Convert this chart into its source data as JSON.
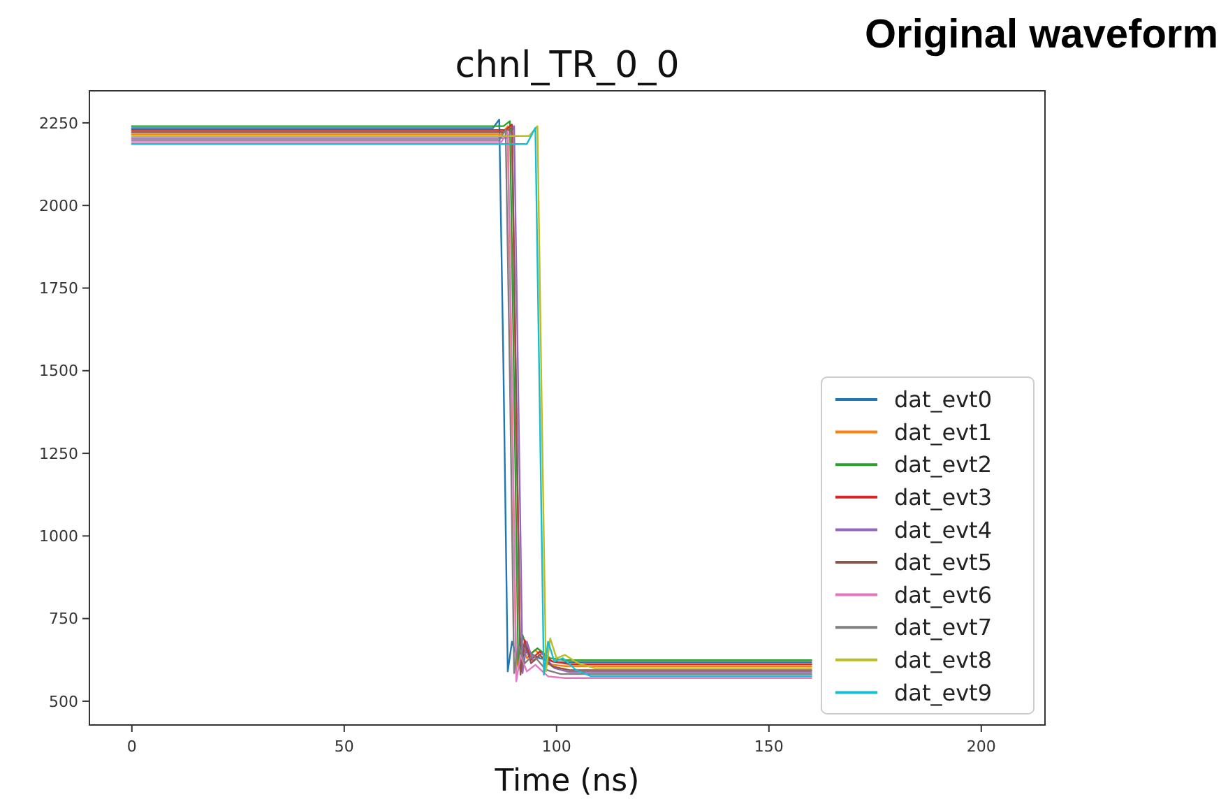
{
  "chart_data": {
    "type": "line",
    "title": "chnl_TR_0_0",
    "xlabel": "Time (ns)",
    "annotations": [
      "Original waveform"
    ],
    "xlim": [
      -10,
      215
    ],
    "ylim": [
      428,
      2347
    ],
    "xticks": [
      0,
      50,
      100,
      150,
      200
    ],
    "yticks": [
      500,
      750,
      1000,
      1250,
      1500,
      1750,
      2000,
      2250
    ],
    "grid": false,
    "legend": "bottom right",
    "series": [
      {
        "name": "dat_evt0",
        "color": "#1f77b4",
        "x": [
          0,
          20,
          40,
          60,
          80,
          85,
          86.5,
          87.5,
          88.5,
          89.5,
          91,
          93,
          96,
          100,
          110,
          120,
          130,
          150,
          160
        ],
        "values": [
          2234,
          2234,
          2234,
          2234,
          2234,
          2234,
          2260,
          1500,
          590,
          680,
          620,
          650,
          630,
          618,
          618,
          618,
          618,
          618,
          618
        ]
      },
      {
        "name": "dat_evt1",
        "color": "#ff7f0e",
        "x": [
          0,
          20,
          40,
          60,
          80,
          87,
          88.5,
          89.5,
          90.5,
          91.5,
          93,
          95,
          98,
          102,
          110,
          120,
          130,
          150,
          160
        ],
        "values": [
          2216,
          2216,
          2216,
          2216,
          2216,
          2216,
          2240,
          1400,
          600,
          690,
          630,
          655,
          612,
          606,
          606,
          606,
          606,
          606,
          606
        ]
      },
      {
        "name": "dat_evt2",
        "color": "#2ca02c",
        "x": [
          0,
          20,
          40,
          60,
          80,
          87.5,
          89,
          90,
          91,
          92,
          93.5,
          95.5,
          98.5,
          102,
          110,
          120,
          130,
          150,
          160
        ],
        "values": [
          2240,
          2240,
          2240,
          2240,
          2240,
          2240,
          2255,
          1450,
          595,
          700,
          640,
          660,
          630,
          624,
          624,
          624,
          624,
          624,
          624
        ]
      },
      {
        "name": "dat_evt3",
        "color": "#d62728",
        "x": [
          0,
          20,
          40,
          60,
          80,
          88,
          89.5,
          90.5,
          91.5,
          92.5,
          94,
          96,
          99,
          103,
          110,
          120,
          130,
          150,
          160
        ],
        "values": [
          2228,
          2228,
          2228,
          2228,
          2228,
          2228,
          2245,
          1380,
          590,
          685,
          625,
          650,
          620,
          612,
          612,
          612,
          612,
          612,
          612
        ]
      },
      {
        "name": "dat_evt4",
        "color": "#9467bd",
        "x": [
          0,
          20,
          40,
          60,
          80,
          88.5,
          90,
          91,
          92,
          93,
          94.5,
          96.5,
          99.5,
          103,
          110,
          120,
          130,
          150,
          160
        ],
        "values": [
          2204,
          2204,
          2204,
          2204,
          2204,
          2204,
          2240,
          1420,
          585,
          680,
          620,
          645,
          600,
          588,
          588,
          588,
          588,
          588,
          588
        ]
      },
      {
        "name": "dat_evt5",
        "color": "#8c564b",
        "x": [
          0,
          20,
          40,
          60,
          80,
          88,
          89.5,
          90.5,
          91.5,
          92.5,
          94,
          96,
          99,
          103,
          110,
          120,
          130,
          150,
          160
        ],
        "values": [
          2222,
          2222,
          2222,
          2222,
          2222,
          2222,
          2235,
          1430,
          580,
          675,
          615,
          640,
          605,
          594,
          594,
          594,
          594,
          594,
          594
        ]
      },
      {
        "name": "dat_evt6",
        "color": "#e377c2",
        "x": [
          0,
          20,
          40,
          60,
          80,
          87,
          88.5,
          89.5,
          90.5,
          91.5,
          93,
          95,
          98,
          102,
          110,
          120,
          130,
          150,
          160
        ],
        "values": [
          2192,
          2192,
          2192,
          2192,
          2192,
          2192,
          2225,
          1460,
          560,
          640,
          590,
          610,
          575,
          570,
          570,
          570,
          570,
          570,
          570
        ]
      },
      {
        "name": "dat_evt7",
        "color": "#7f7f7f",
        "x": [
          0,
          20,
          40,
          60,
          80,
          86.5,
          88,
          89,
          90,
          91,
          92.5,
          94.5,
          97.5,
          101,
          110,
          120,
          130,
          150,
          160
        ],
        "values": [
          2198,
          2198,
          2198,
          2198,
          2198,
          2198,
          2230,
          1480,
          585,
          670,
          615,
          640,
          595,
          582,
          582,
          582,
          582,
          582,
          582
        ]
      },
      {
        "name": "dat_evt8",
        "color": "#bcbd22",
        "x": [
          0,
          20,
          40,
          60,
          80,
          93.5,
          95.5,
          96.5,
          97.5,
          98.5,
          100,
          102,
          105,
          109,
          115,
          120,
          130,
          150,
          160
        ],
        "values": [
          2210,
          2210,
          2210,
          2210,
          2210,
          2210,
          2240,
          1400,
          590,
          690,
          630,
          640,
          615,
          600,
          600,
          600,
          600,
          600,
          600
        ]
      },
      {
        "name": "dat_evt9",
        "color": "#17becf",
        "x": [
          0,
          20,
          40,
          60,
          80,
          93,
          95,
          96,
          97,
          98,
          99.5,
          101.5,
          104.5,
          108,
          115,
          120,
          130,
          150,
          160
        ],
        "values": [
          2186,
          2186,
          2186,
          2186,
          2186,
          2186,
          2235,
          1420,
          580,
          680,
          620,
          630,
          595,
          576,
          576,
          576,
          576,
          576,
          576
        ]
      }
    ]
  }
}
